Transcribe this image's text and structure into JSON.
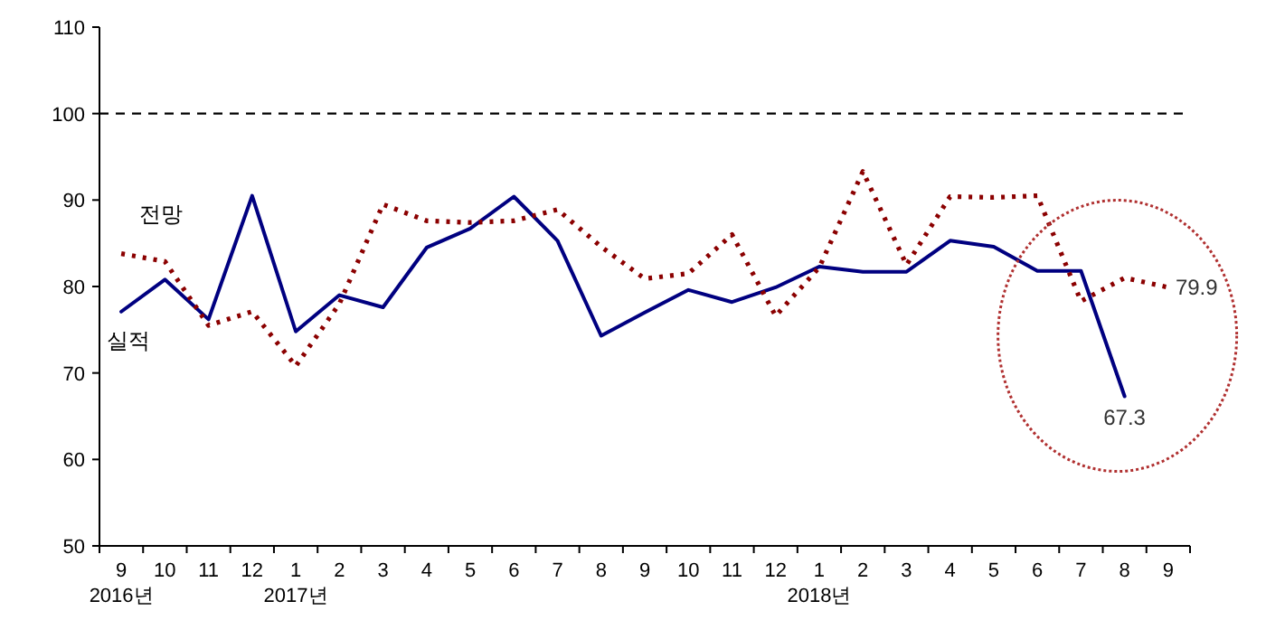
{
  "chart_data": {
    "type": "line",
    "categories": [
      "9\n2016년",
      "10",
      "11",
      "12",
      "1\n2017년",
      "2",
      "3",
      "4",
      "5",
      "6",
      "7",
      "8",
      "9",
      "10",
      "11",
      "12",
      "1\n2018년",
      "2",
      "3",
      "4",
      "5",
      "6",
      "7",
      "8",
      "9"
    ],
    "series": [
      {
        "name": "실적",
        "color": "#000080",
        "line_style": "solid",
        "values": [
          77.1,
          80.8,
          76.2,
          90.5,
          74.8,
          79.0,
          77.6,
          84.5,
          86.7,
          90.4,
          85.3,
          74.3,
          77.0,
          79.6,
          78.2,
          79.9,
          82.3,
          81.7,
          81.7,
          85.3,
          84.6,
          81.8,
          81.8,
          67.3,
          null
        ],
        "value_labels": [
          null,
          null,
          null,
          null,
          null,
          null,
          null,
          null,
          null,
          null,
          null,
          null,
          null,
          null,
          null,
          null,
          null,
          null,
          null,
          null,
          null,
          null,
          null,
          "67.3",
          null
        ]
      },
      {
        "name": "전망",
        "color": "#8b0000",
        "line_style": "dotted",
        "values": [
          83.8,
          82.9,
          75.5,
          77.1,
          70.8,
          78.0,
          89.5,
          87.6,
          87.4,
          87.6,
          88.9,
          84.6,
          80.9,
          81.5,
          86.0,
          76.6,
          82.2,
          93.3,
          82.5,
          90.4,
          90.3,
          90.5,
          78.3,
          81.0,
          79.9
        ],
        "value_labels": [
          null,
          null,
          null,
          null,
          null,
          null,
          null,
          null,
          null,
          null,
          null,
          null,
          null,
          null,
          null,
          null,
          null,
          null,
          null,
          null,
          null,
          null,
          null,
          null,
          "79.9"
        ]
      }
    ],
    "ylim": [
      50,
      110
    ],
    "yticks": [
      50,
      60,
      70,
      80,
      90,
      100,
      110
    ],
    "ref_lines": [
      {
        "axis": "y",
        "value": 100,
        "color": "#000000",
        "line_style": "dashed"
      }
    ],
    "grid": false,
    "marker": "none"
  }
}
